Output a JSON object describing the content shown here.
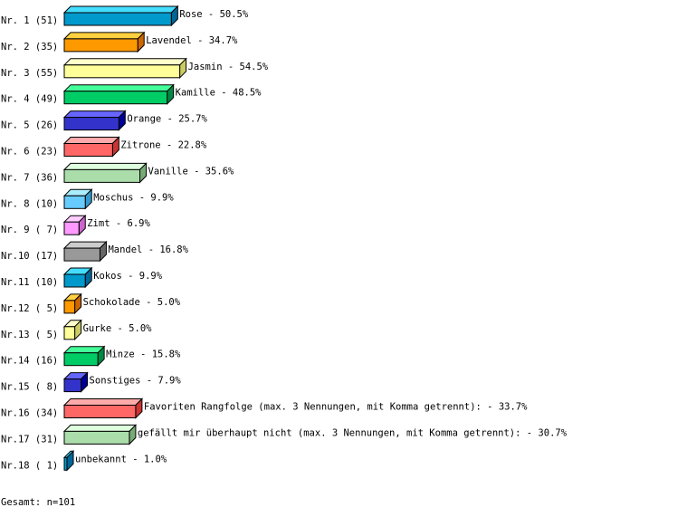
{
  "chart_data": {
    "type": "bar",
    "orientation": "horizontal",
    "style": "3d",
    "rank_labels": [
      "Nr. 1 (51)",
      "Nr. 2 (35)",
      "Nr. 3 (55)",
      "Nr. 4 (49)",
      "Nr. 5 (26)",
      "Nr. 6 (23)",
      "Nr. 7 (36)",
      "Nr. 8 (10)",
      "Nr. 9 ( 7)",
      "Nr.10 (17)",
      "Nr.11 (10)",
      "Nr.12 ( 5)",
      "Nr.13 ( 5)",
      "Nr.14 (16)",
      "Nr.15 ( 8)",
      "Nr.16 (34)",
      "Nr.17 (31)",
      "Nr.18 ( 1)"
    ],
    "categories": [
      "Rose",
      "Lavendel",
      "Jasmin",
      "Kamille",
      "Orange",
      "Zitrone",
      "Vanille",
      "Moschus",
      "Zimt",
      "Mandel",
      "Kokos",
      "Schokolade",
      "Gurke",
      "Minze",
      "Sonstiges",
      "Favoriten Rangfolge (max. 3 Nennungen, mit Komma getrennt):",
      "gefällt mir überhaupt nicht (max. 3 Nennungen, mit Komma getrennt):",
      "unbekannt"
    ],
    "values": [
      51,
      35,
      55,
      49,
      26,
      23,
      36,
      10,
      7,
      17,
      10,
      5,
      5,
      16,
      8,
      34,
      31,
      1
    ],
    "percent_labels": [
      "50.5%",
      "34.7%",
      "54.5%",
      "48.5%",
      "25.7%",
      "22.8%",
      "35.6%",
      "9.9%",
      "6.9%",
      "16.8%",
      "9.9%",
      "5.0%",
      "5.0%",
      "15.8%",
      "7.9%",
      "33.7%",
      "30.7%",
      "1.0%"
    ],
    "colors": [
      "#0099cc",
      "#ff9900",
      "#ffff99",
      "#00cc66",
      "#3333cc",
      "#ff6666",
      "#aaddaa",
      "#66ccff",
      "#ff99ff",
      "#999999",
      "#0099cc",
      "#ff9900",
      "#ffff99",
      "#00cc66",
      "#3333cc",
      "#ff6666",
      "#aaddaa",
      "#0099cc"
    ],
    "top_colors": [
      "#44ddff",
      "#ffd040",
      "#ffffcc",
      "#44ff99",
      "#6666ff",
      "#ffaaaa",
      "#ddffdd",
      "#aaeeff",
      "#ffccff",
      "#cccccc",
      "#44ddff",
      "#ffd040",
      "#ffffcc",
      "#44ff99",
      "#6666ff",
      "#ffaaaa",
      "#ddffdd",
      "#44ddff"
    ],
    "side_colors": [
      "#006699",
      "#cc6600",
      "#cccc66",
      "#008844",
      "#000099",
      "#cc3333",
      "#77aa77",
      "#3399cc",
      "#cc66cc",
      "#666666",
      "#006699",
      "#cc6600",
      "#cccc66",
      "#008844",
      "#000099",
      "#cc3333",
      "#77aa77",
      "#006699"
    ],
    "footer": "Gesamt: n=101"
  }
}
